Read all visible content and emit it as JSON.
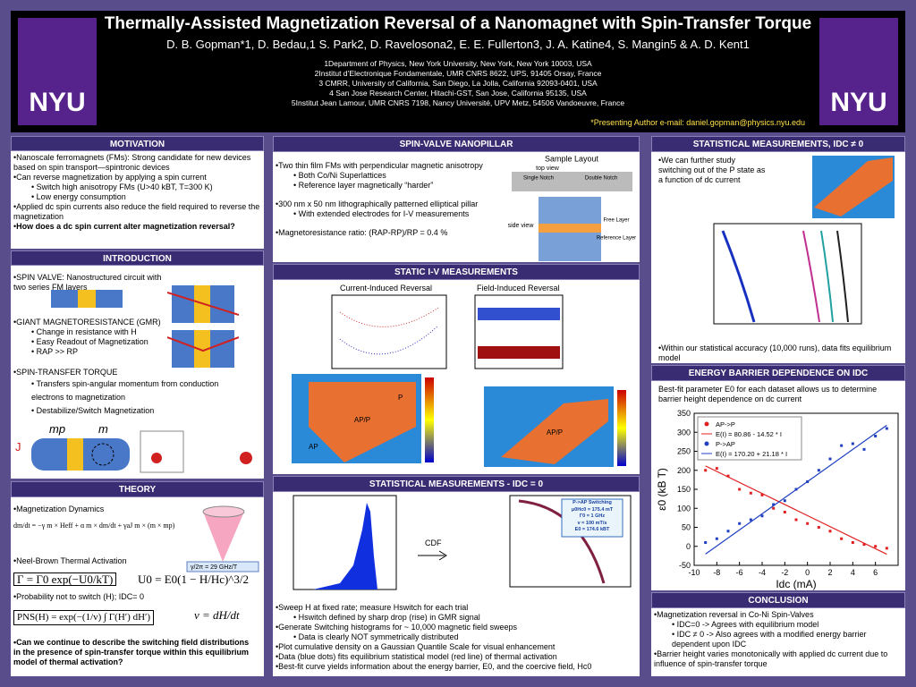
{
  "header": {
    "title": "Thermally-Assisted Magnetization Reversal of a Nanomagnet with Spin-Transfer Torque",
    "authors": "D. B. Gopman*1, D. Bedau,1 S. Park2, D. Ravelosona2, E. E. Fullerton3,  J. A. Katine4, S. Mangin5 & A. D. Kent1",
    "affiliations": [
      "1Department of Physics, New York University, New York, New York 10003, USA",
      "2Institut d’Electronique Fondamentale, UMR CNRS 8622, UPS, 91405 Orsay, France",
      "3 CMRR, University of California, San Diego, La Jolla, California 92093-0401, USA",
      "4 San Jose Research Center, Hitachi-GST, San Jose, California 95135, USA",
      "5Institut Jean Lamour, UMR CNRS 7198, Nancy Université, UPV Metz, 54506 Vandoeuvre, France"
    ],
    "presenting": "*Presenting Author e-mail: daniel.gopman@physics.nyu.edu",
    "logo": "NYU"
  },
  "sections": {
    "motivation": {
      "title": "MOTIVATION",
      "items": [
        {
          "text": "Nanoscale ferromagnets (FMs): Strong candidate for new devices based on spin transport—spintronic devices"
        },
        {
          "text": "Can reverse magnetization by applying a spin current",
          "sub": [
            "Switch high anisotropy FMs (U>40 kBT, T=300 K)",
            "Low energy consumption"
          ]
        },
        {
          "text": "Applied dc spin currents also reduce the field required to reverse the magnetization"
        },
        {
          "text": "How does a dc spin current alter magnetization reversal?"
        }
      ]
    },
    "introduction": {
      "title": "INTRODUCTION",
      "spin_valve": "SPIN VALVE: Nanostructured circuit with two series FM layers",
      "gmr": {
        "text": "GIANT MAGNETORESISTANCE (GMR)",
        "sub": [
          "Change in resistance with H",
          "Easy Readout of Magnetization",
          "RAP >> RP"
        ]
      },
      "stt": {
        "text": "SPIN-TRANSFER TORQUE",
        "sub": [
          "Transfers spin-angular momentum from conduction electrons to magnetization",
          "Destabilize/Switch Magnetization"
        ]
      },
      "figure_labels": [
        "mp",
        "m",
        "J"
      ]
    },
    "theory": {
      "title": "THEORY",
      "dynamics": "Magnetization Dynamics",
      "llg": "dm/dt = −γ m × Heff + α m × dm/dt + γaJ m × (m × mp)",
      "neel": "Neel-Brown Thermal Activation",
      "rate": "Γ = Γ0 exp(−U0/kT)",
      "barrier": "U0 = E0(1 − H/Hc)^3/2",
      "prob": "Probability not to switch (H); IDC= 0",
      "pns": "PNS(H) = exp(−(1/v) ∫ Γ(H′) dH′)",
      "rate_v": "v = dH/dt",
      "freq": "γ/2π = 29 GHz/T",
      "question": "Can we continue to describe the switching field distributions in the presence of spin-transfer torque within this equilibrium model of thermal activation?"
    },
    "spin_valve": {
      "title": "SPIN-VALVE NANOPILLAR",
      "items": [
        {
          "text": "Two thin film FMs with perpendicular magnetic anisotropy",
          "sub": [
            "Both Co/Ni Superlattices",
            "Reference layer magnetically “harder”"
          ]
        },
        {
          "text": "300 nm x 50 nm lithographically patterned elliptical pillar",
          "sub": [
            "With extended electrodes for I-V measurements"
          ]
        },
        {
          "text": "Magnetoresistance ratio: (RAP-RP)/RP = 0.4 %"
        }
      ],
      "figure_labels": [
        "Sample Layout",
        "top view",
        "Single Notch",
        "Double Notch",
        "side view",
        "Free Layer",
        "Reference Layer"
      ]
    },
    "static_iv": {
      "title": "STATIC I-V MEASUREMENTS",
      "current": "Current-Induced Reversal",
      "field": "Field-Induced Reversal",
      "states": [
        "AP/P",
        "P",
        "AP"
      ]
    },
    "stat_zero": {
      "title": "STATISTICAL MEASUREMENTS  - IDC = 0",
      "cdf": "CDF",
      "inset": [
        "P->AP Switching",
        "μ0Hc0 = 175.4 mT",
        "Γ0 = 1 GHz",
        "v = 100 mT/s",
        "E0 = 174.6 kBT"
      ],
      "items": [
        {
          "text": "Sweep H at fixed rate; measure Hswitch for each trial",
          "sub": [
            "Hswitch defined by sharp drop (rise) in GMR signal"
          ]
        },
        {
          "text": "Generate Switching histograms for ~ 10,000 magnetic field sweeps",
          "sub": [
            "Data is clearly NOT symmetrically distributed"
          ]
        },
        {
          "text": "Plot cumulative density on a Gaussian Quantile Scale for visual enhancement"
        },
        {
          "text": "Data (blue dots) fits equilibrium statistical model (red line) of thermal activation"
        },
        {
          "text": "Best-fit curve yields information about the energy barrier, E0, and the coercive field, Hc0"
        }
      ]
    },
    "stat_dc": {
      "title": "STATISTICAL MEASUREMENTS, IDC ≠ 0",
      "intro": "We can further study switching out of the P state as a function of dc current",
      "outro": "Within our statistical accuracy (10,000 runs), data fits equilibrium model"
    },
    "energy": {
      "title": "ENERGY BARRIER DEPENDENCE ON IDC",
      "intro": "Best-fit parameter E0 for each dataset allows us to determine barrier height dependence on dc current"
    },
    "conclusion": {
      "title": "CONCLUSION",
      "items": [
        {
          "text": "Magnetization reversal in Co-Ni Spin-Valves",
          "sub": [
            "IDC=0 -> Agrees with equilibrium model",
            "IDC ≠ 0 -> Also agrees with a modified energy barrier dependent upon IDC"
          ]
        },
        {
          "text": "Barrier height varies monotonically with applied dc current due to influence of spin-transfer torque"
        }
      ]
    }
  },
  "chart_data": {
    "type": "scatter",
    "xlabel": "Idc (mA)",
    "ylabel": "ε0 (kB T)",
    "xlim": [
      -10,
      8
    ],
    "xticks": [
      -10,
      -8,
      -6,
      -4,
      -2,
      0,
      2,
      4,
      6
    ],
    "ylim": [
      -50,
      350
    ],
    "yticks": [
      -50,
      0,
      50,
      100,
      150,
      200,
      250,
      300,
      350
    ],
    "legend": "upper left",
    "series": [
      {
        "name": "AP->P",
        "kind": "points",
        "color": "#e02020",
        "x": [
          -9,
          -8,
          -7,
          -6,
          -5,
          -4,
          -3,
          -2,
          -1,
          0,
          1,
          2,
          3,
          4,
          5,
          6,
          7
        ],
        "values": [
          200,
          205,
          185,
          150,
          140,
          135,
          100,
          90,
          70,
          60,
          50,
          40,
          20,
          10,
          5,
          0,
          -5
        ]
      },
      {
        "name": "E(I) = 80.86 - 14.52 * I",
        "kind": "line",
        "color": "#e02020",
        "x": [
          -9,
          7
        ],
        "values": [
          211.5,
          -20.8
        ]
      },
      {
        "name": "P->AP",
        "kind": "points",
        "color": "#2040c0",
        "x": [
          -9,
          -8,
          -7,
          -6,
          -5,
          -4,
          -3,
          -2,
          -1,
          0,
          1,
          2,
          3,
          4,
          5,
          6,
          7
        ],
        "values": [
          10,
          20,
          40,
          60,
          70,
          80,
          110,
          120,
          150,
          170,
          200,
          230,
          265,
          270,
          255,
          290,
          310
        ]
      },
      {
        "name": "E(I) = 170.20 + 21.18 * I",
        "kind": "line",
        "color": "#2040c0",
        "x": [
          -9,
          7
        ],
        "values": [
          -20.4,
          318.5
        ]
      }
    ]
  }
}
